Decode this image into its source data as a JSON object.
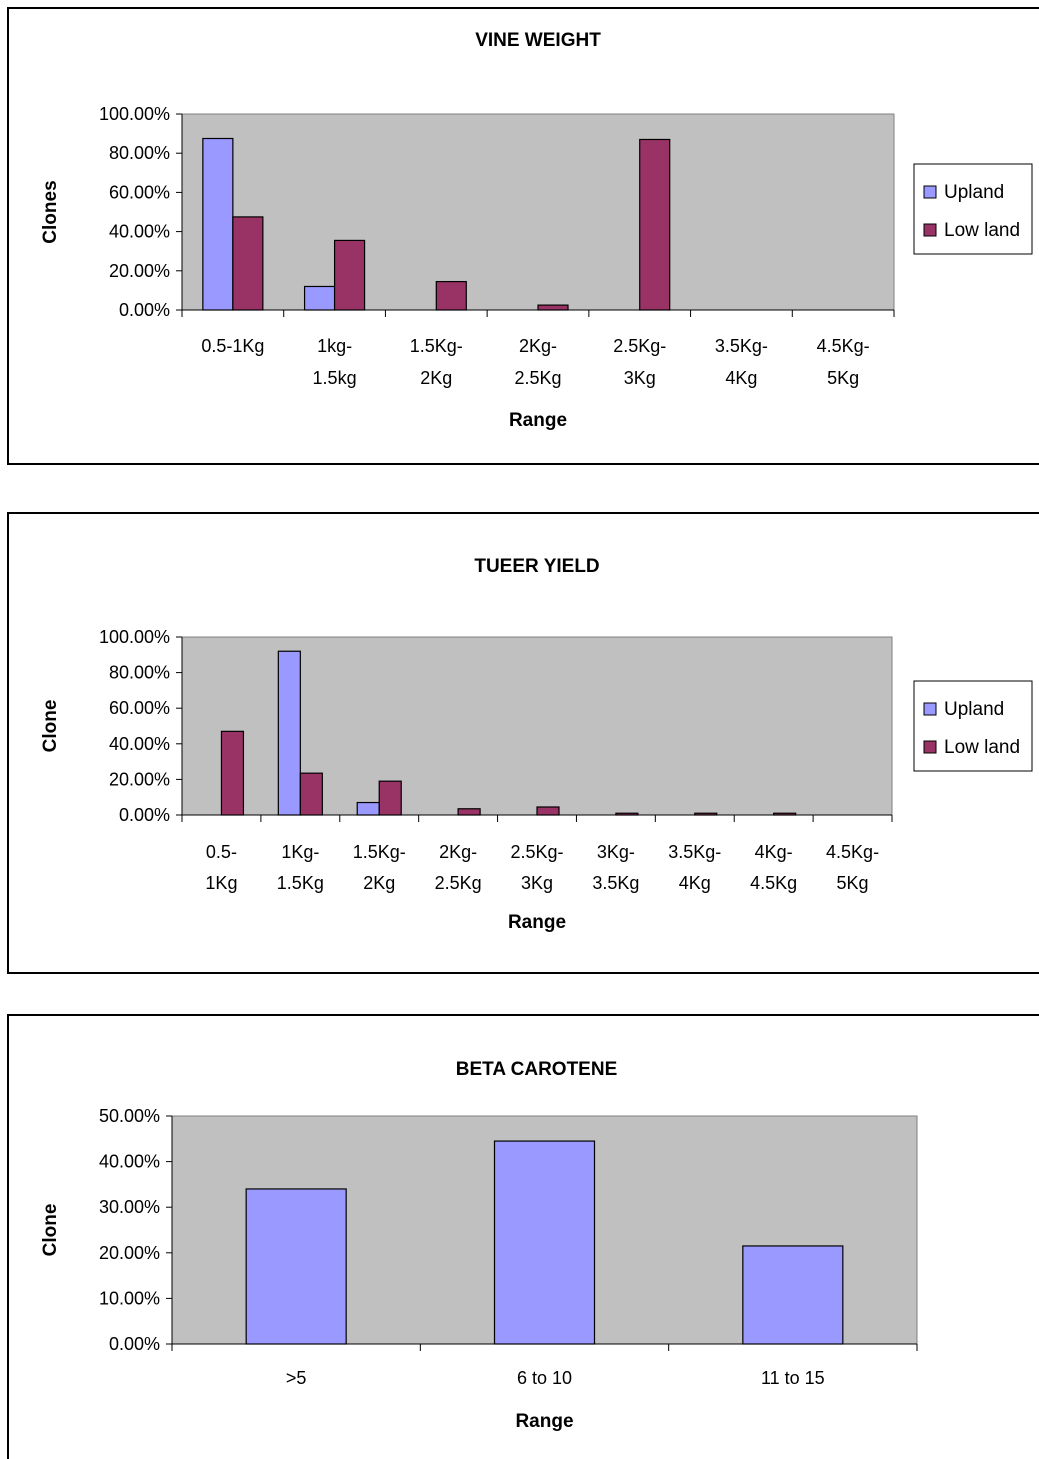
{
  "chart_data": [
    {
      "type": "bar",
      "title": "VINE WEIGHT",
      "xlabel": "Range",
      "ylabel": "Clones",
      "ylim": [
        0,
        1
      ],
      "y_tick_labels": [
        "0.00%",
        "20.00%",
        "40.00%",
        "60.00%",
        "80.00%",
        "100.00%"
      ],
      "categories": [
        [
          "0.5-1Kg"
        ],
        [
          "1kg-",
          "1.5kg"
        ],
        [
          "1.5Kg-",
          "2Kg"
        ],
        [
          "2Kg-",
          "2.5Kg"
        ],
        [
          "2.5Kg-",
          "3Kg"
        ],
        [
          "3.5Kg-",
          "4Kg"
        ],
        [
          "4.5Kg-",
          "5Kg"
        ]
      ],
      "series": [
        {
          "name": "Upland",
          "color": "#9999ff",
          "values": [
            0.875,
            0.12,
            0,
            0,
            0,
            0,
            0
          ]
        },
        {
          "name": "Low land",
          "color": "#993366",
          "values": [
            0.475,
            0.355,
            0.145,
            0.025,
            0.87,
            0,
            0
          ]
        }
      ],
      "plot_bg": "#c0c0c0",
      "legend": "right"
    },
    {
      "type": "bar",
      "title": "TUEER YIELD",
      "xlabel": "Range",
      "ylabel": "Clone",
      "ylim": [
        0,
        1
      ],
      "y_tick_labels": [
        "0.00%",
        "20.00%",
        "40.00%",
        "60.00%",
        "80.00%",
        "100.00%"
      ],
      "categories": [
        [
          "0.5-",
          "1Kg"
        ],
        [
          "1Kg-",
          "1.5Kg"
        ],
        [
          "1.5Kg-",
          "2Kg"
        ],
        [
          "2Kg-",
          "2.5Kg"
        ],
        [
          "2.5Kg-",
          "3Kg"
        ],
        [
          "3Kg-",
          "3.5Kg"
        ],
        [
          "3.5Kg-",
          "4Kg"
        ],
        [
          "4Kg-",
          "4.5Kg"
        ],
        [
          "4.5Kg-",
          "5Kg"
        ]
      ],
      "series": [
        {
          "name": "Upland",
          "color": "#9999ff",
          "values": [
            0,
            0.92,
            0.07,
            0,
            0,
            0,
            0,
            0,
            0
          ]
        },
        {
          "name": "Low land",
          "color": "#993366",
          "values": [
            0.47,
            0.235,
            0.19,
            0.035,
            0.045,
            0.01,
            0.01,
            0.01,
            0
          ]
        }
      ],
      "plot_bg": "#c0c0c0",
      "legend": "right"
    },
    {
      "type": "bar",
      "title": "BETA CAROTENE",
      "xlabel": "Range",
      "ylabel": "Clone",
      "ylim": [
        0,
        0.5
      ],
      "y_tick_labels": [
        "0.00%",
        "10.00%",
        "20.00%",
        "30.00%",
        "40.00%",
        "50.00%"
      ],
      "categories": [
        [
          ">5"
        ],
        [
          "6 to 10"
        ],
        [
          "11 to 15"
        ]
      ],
      "series": [
        {
          "color": "#9999ff",
          "values": [
            0.34,
            0.445,
            0.215
          ]
        }
      ],
      "plot_bg": "#c0c0c0",
      "legend": "none"
    }
  ]
}
